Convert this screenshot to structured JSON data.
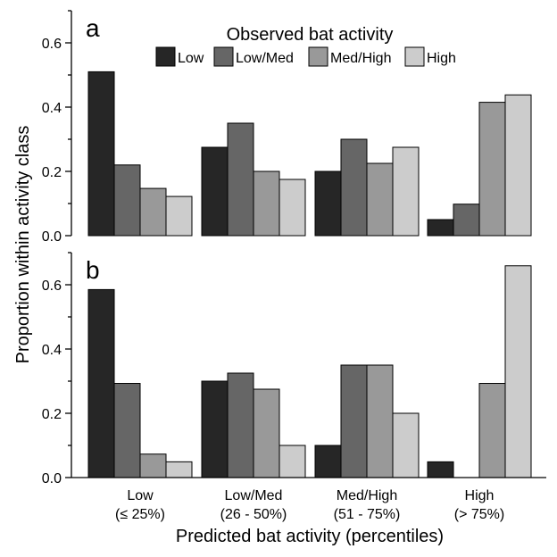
{
  "chart_data": {
    "type": "bar",
    "legend": {
      "title": "Observed bat activity",
      "placement": "top-center"
    },
    "series_styles": [
      {
        "name": "Low",
        "color": "#262626"
      },
      {
        "name": "Low/Med",
        "color": "#666666"
      },
      {
        "name": "Med/High",
        "color": "#999999"
      },
      {
        "name": "High",
        "color": "#cccccc"
      }
    ],
    "categories": [
      {
        "line1": "Low",
        "line2": "(≤ 25%)"
      },
      {
        "line1": "Low/Med",
        "line2": "(26 - 50%)"
      },
      {
        "line1": "Med/High",
        "line2": "(51 - 75%)"
      },
      {
        "line1": "High",
        "line2": "(> 75%)"
      }
    ],
    "xlabel": "Predicted bat activity (percentiles)",
    "ylabel": "Proportion within activity class",
    "ylim": [
      0,
      0.7
    ],
    "yticks": [
      "0.0",
      "0.2",
      "0.4",
      "0.6"
    ],
    "grid": false,
    "panels": [
      {
        "label": "a",
        "values": [
          [
            0.51,
            0.22,
            0.147,
            0.122
          ],
          [
            0.275,
            0.35,
            0.2,
            0.175
          ],
          [
            0.2,
            0.3,
            0.225,
            0.275
          ],
          [
            0.05,
            0.098,
            0.415,
            0.438
          ]
        ]
      },
      {
        "label": "b",
        "values": [
          [
            0.585,
            0.293,
            0.073,
            0.049
          ],
          [
            0.3,
            0.325,
            0.275,
            0.1
          ],
          [
            0.1,
            0.35,
            0.35,
            0.2
          ],
          [
            0.049,
            0.0,
            0.293,
            0.659
          ]
        ]
      }
    ]
  }
}
